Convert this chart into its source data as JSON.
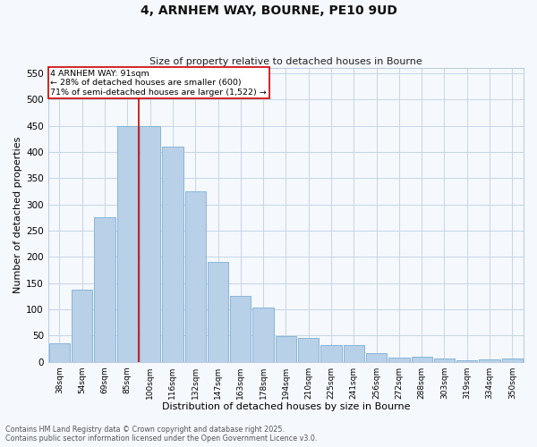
{
  "title_line1": "4, ARNHEM WAY, BOURNE, PE10 9UD",
  "title_line2": "Size of property relative to detached houses in Bourne",
  "xlabel": "Distribution of detached houses by size in Bourne",
  "ylabel": "Number of detached properties",
  "categories": [
    "38sqm",
    "54sqm",
    "69sqm",
    "85sqm",
    "100sqm",
    "116sqm",
    "132sqm",
    "147sqm",
    "163sqm",
    "178sqm",
    "194sqm",
    "210sqm",
    "225sqm",
    "241sqm",
    "256sqm",
    "272sqm",
    "288sqm",
    "303sqm",
    "319sqm",
    "334sqm",
    "350sqm"
  ],
  "bar_values": [
    35,
    137,
    275,
    450,
    450,
    410,
    325,
    190,
    125,
    104,
    48,
    45,
    32,
    32,
    17,
    8,
    10,
    6,
    3,
    5,
    6
  ],
  "bar_color": "#b8d0e8",
  "bar_edge_color": "#7aafd4",
  "vline_color": "#cc0000",
  "annotation_text": "4 ARNHEM WAY: 91sqm\n← 28% of detached houses are smaller (600)\n71% of semi-detached houses are larger (1,522) →",
  "annotation_box_color": "#cc0000",
  "ylim": [
    0,
    560
  ],
  "yticks": [
    0,
    50,
    100,
    150,
    200,
    250,
    300,
    350,
    400,
    450,
    500,
    550
  ],
  "background_color": "#f5f8fd",
  "grid_color": "#c5d5e8",
  "footer_line1": "Contains HM Land Registry data © Crown copyright and database right 2025.",
  "footer_line2": "Contains public sector information licensed under the Open Government Licence v3.0."
}
